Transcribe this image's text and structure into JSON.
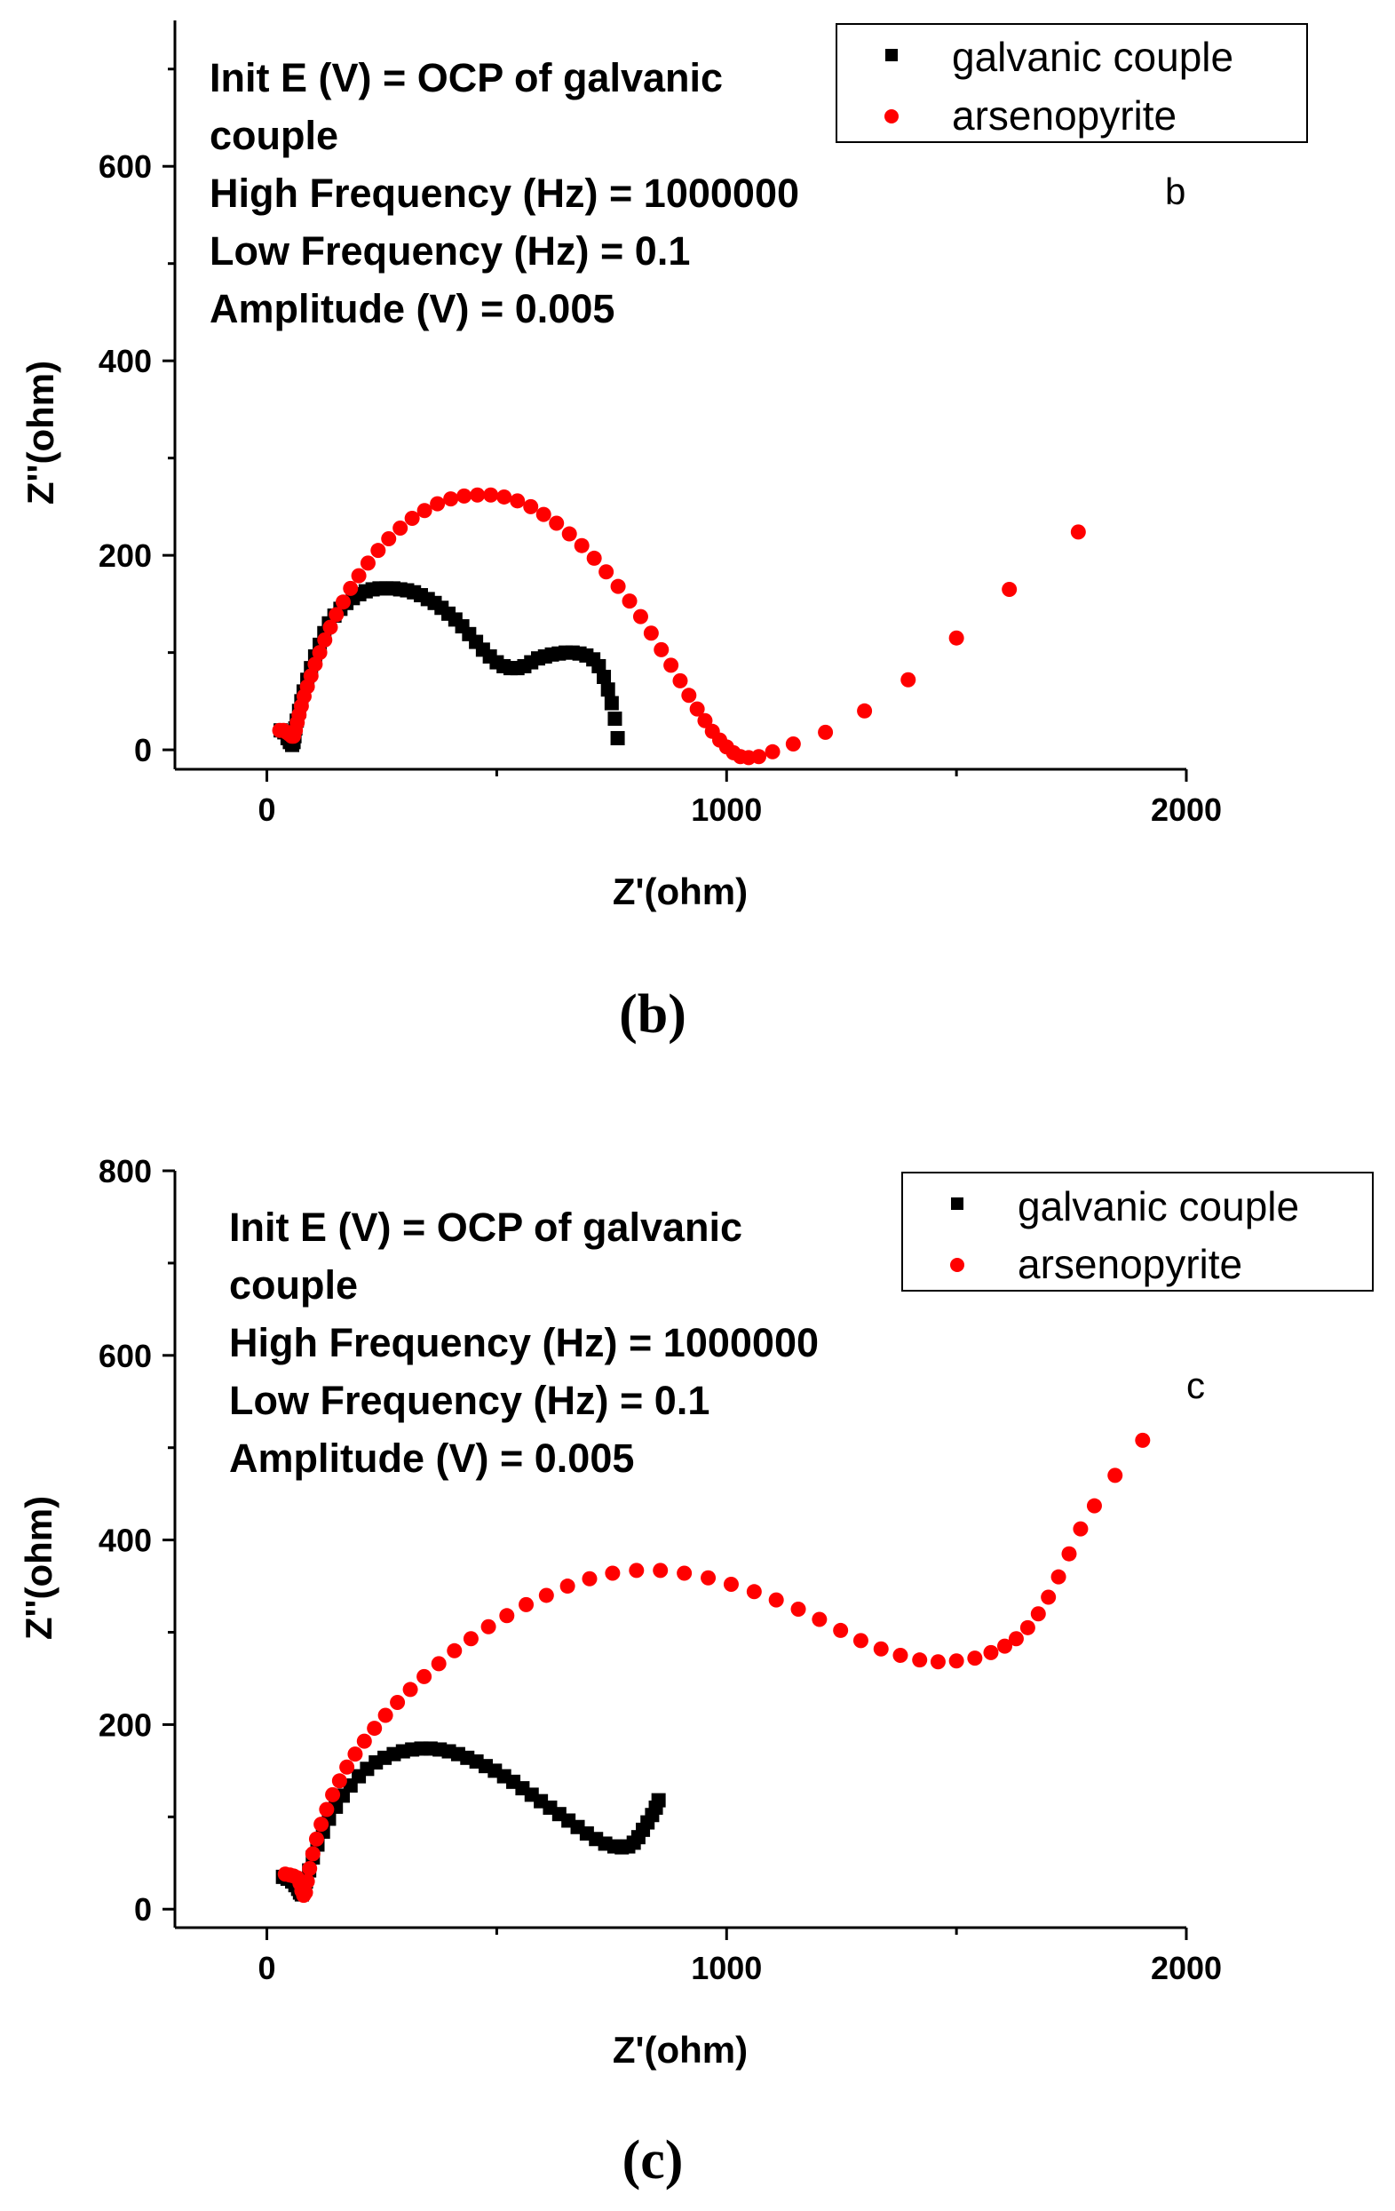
{
  "colors": {
    "galvanic": "#000000",
    "arsenopyrite": "#ff0000",
    "axis": "#000000"
  },
  "chart_data": [
    {
      "type": "scatter",
      "panel_letter": "b",
      "caption": "(b)",
      "xlabel": "Z'(ohm)",
      "ylabel": "Z''(ohm)",
      "xlim": [
        -200,
        2000
      ],
      "ylim": [
        -20,
        750
      ],
      "xticks": [
        0,
        1000,
        2000
      ],
      "xtick_labels": [
        "0",
        "1000",
        "2000"
      ],
      "yticks": [
        0,
        200,
        400,
        600
      ],
      "ytick_labels": [
        "0",
        "200",
        "400",
        "600"
      ],
      "legend_position": "top-right",
      "annotations": [
        "Init E (V) = OCP of galvanic",
        "couple",
        "High Frequency (Hz) = 1000000",
        "Low Frequency (Hz) = 0.1",
        "Amplitude (V) = 0.005"
      ],
      "series": [
        {
          "name": "galvanic couple",
          "marker": "square",
          "x": [
            30,
            38,
            45,
            50,
            55,
            58,
            60,
            62,
            65,
            70,
            75,
            80,
            88,
            96,
            105,
            115,
            125,
            135,
            147,
            160,
            173,
            187,
            201,
            215,
            230,
            245,
            260,
            275,
            290,
            305,
            320,
            335,
            350,
            365,
            380,
            395,
            410,
            425,
            440,
            455,
            470,
            485,
            500,
            515,
            530,
            545,
            560,
            575,
            590,
            605,
            620,
            635,
            650,
            665,
            680,
            695,
            710,
            722,
            733,
            742,
            750,
            757,
            763
          ],
          "y": [
            20,
            18,
            12,
            8,
            5,
            8,
            14,
            22,
            30,
            40,
            50,
            60,
            72,
            84,
            96,
            108,
            120,
            130,
            138,
            145,
            151,
            156,
            160,
            163,
            165,
            166,
            166,
            166,
            165,
            164,
            162,
            159,
            155,
            151,
            146,
            140,
            134,
            127,
            119,
            111,
            103,
            96,
            90,
            86,
            84,
            84,
            86,
            90,
            94,
            96,
            98,
            99,
            100,
            100,
            99,
            97,
            93,
            86,
            75,
            62,
            48,
            32,
            12
          ]
        },
        {
          "name": "arsenopyrite",
          "marker": "circle",
          "x": [
            28,
            36,
            43,
            49,
            54,
            58,
            62,
            66,
            70,
            75,
            81,
            88,
            96,
            105,
            115,
            126,
            138,
            151,
            166,
            182,
            200,
            220,
            242,
            265,
            290,
            316,
            343,
            371,
            400,
            429,
            458,
            487,
            516,
            545,
            574,
            602,
            630,
            658,
            685,
            712,
            738,
            764,
            789,
            813,
            836,
            858,
            879,
            899,
            918,
            936,
            953,
            969,
            985,
            1000,
            1015,
            1030,
            1048,
            1070,
            1100,
            1145,
            1215,
            1300,
            1395,
            1500,
            1615,
            1765
          ],
          "y": [
            20,
            20,
            18,
            16,
            14,
            14,
            20,
            28,
            36,
            45,
            55,
            65,
            76,
            88,
            100,
            113,
            126,
            139,
            152,
            166,
            179,
            192,
            205,
            217,
            228,
            238,
            246,
            253,
            258,
            261,
            262,
            262,
            260,
            256,
            250,
            242,
            233,
            222,
            210,
            197,
            183,
            168,
            153,
            137,
            120,
            103,
            87,
            71,
            56,
            42,
            30,
            19,
            10,
            3,
            -3,
            -7,
            -8,
            -7,
            -2,
            6,
            18,
            40,
            72,
            115,
            165,
            224
          ]
        }
      ]
    },
    {
      "type": "scatter",
      "panel_letter": "c",
      "caption": "(c)",
      "xlabel": "Z'(ohm)",
      "ylabel": "Z''(ohm)",
      "xlim": [
        -200,
        2000
      ],
      "ylim": [
        -20,
        800
      ],
      "xticks": [
        0,
        1000,
        2000
      ],
      "xtick_labels": [
        "0",
        "1000",
        "2000"
      ],
      "yticks": [
        0,
        200,
        400,
        600,
        800
      ],
      "ytick_labels": [
        "0",
        "200",
        "400",
        "600",
        "800"
      ],
      "legend_position": "top-right",
      "annotations": [
        "Init E (V) = OCP of galvanic",
        "couple",
        "High Frequency (Hz) = 1000000",
        "Low Frequency (Hz) = 0.1",
        "Amplitude (V) = 0.005"
      ],
      "series": [
        {
          "name": "galvanic couple",
          "marker": "square",
          "x": [
            35,
            45,
            55,
            62,
            68,
            72,
            76,
            80,
            85,
            92,
            100,
            110,
            122,
            135,
            150,
            165,
            182,
            200,
            218,
            237,
            256,
            276,
            296,
            316,
            336,
            356,
            376,
            396,
            416,
            436,
            456,
            476,
            496,
            516,
            536,
            556,
            576,
            596,
            616,
            636,
            656,
            676,
            696,
            716,
            736,
            756,
            772,
            786,
            798,
            808,
            818,
            828,
            838,
            846,
            852
          ],
          "y": [
            35,
            33,
            30,
            26,
            22,
            18,
            16,
            20,
            30,
            42,
            56,
            70,
            84,
            98,
            111,
            123,
            134,
            144,
            152,
            159,
            164,
            168,
            171,
            173,
            174,
            174,
            173,
            171,
            168,
            164,
            160,
            155,
            150,
            144,
            138,
            131,
            124,
            117,
            110,
            103,
            96,
            89,
            82,
            76,
            71,
            68,
            67,
            68,
            72,
            78,
            86,
            94,
            102,
            110,
            118
          ]
        },
        {
          "name": "arsenopyrite",
          "marker": "circle",
          "x": [
            40,
            50,
            58,
            66,
            72,
            76,
            80,
            84,
            88,
            93,
            100,
            108,
            118,
            130,
            143,
            158,
            174,
            192,
            212,
            234,
            258,
            284,
            312,
            342,
            374,
            408,
            444,
            482,
            522,
            564,
            608,
            654,
            702,
            752,
            804,
            856,
            908,
            960,
            1010,
            1060,
            1108,
            1156,
            1202,
            1248,
            1292,
            1336,
            1378,
            1420,
            1460,
            1500,
            1540,
            1575,
            1605,
            1630,
            1655,
            1678,
            1700,
            1722,
            1745,
            1770,
            1800,
            1845,
            1905
          ],
          "y": [
            38,
            37,
            36,
            34,
            28,
            20,
            15,
            18,
            30,
            44,
            60,
            76,
            92,
            108,
            124,
            139,
            154,
            168,
            182,
            196,
            210,
            224,
            238,
            252,
            266,
            280,
            293,
            306,
            318,
            330,
            340,
            350,
            358,
            364,
            367,
            367,
            364,
            359,
            352,
            344,
            335,
            325,
            314,
            302,
            291,
            282,
            275,
            270,
            268,
            269,
            272,
            278,
            285,
            293,
            305,
            320,
            338,
            360,
            385,
            412,
            437,
            470,
            508
          ]
        }
      ]
    }
  ]
}
